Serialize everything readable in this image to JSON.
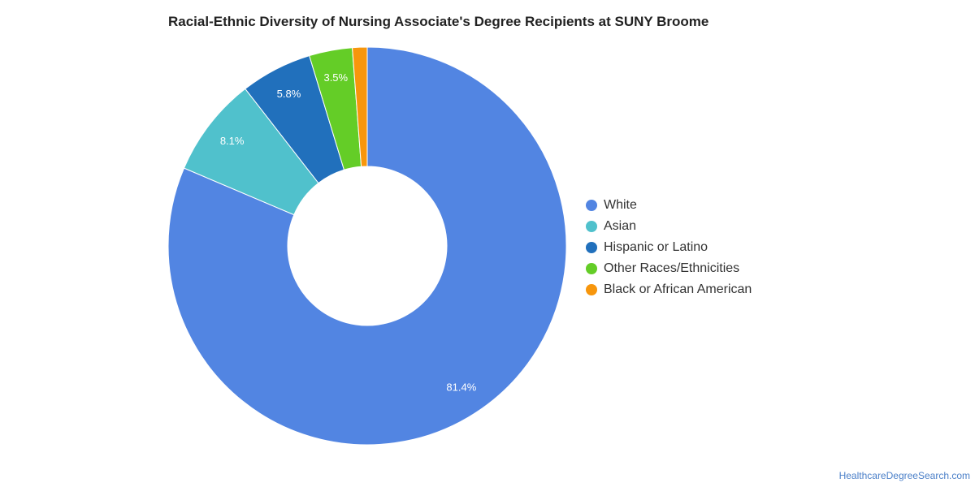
{
  "chart_data": {
    "type": "pie",
    "variant": "donut",
    "title": "Racial-Ethnic Diversity of Nursing Associate's Degree Recipients at SUNY Broome",
    "unit": "%",
    "legend_position": "right",
    "series": [
      {
        "name": "White",
        "value": 81.4,
        "label": "81.4%",
        "color": "#5285e2"
      },
      {
        "name": "Asian",
        "value": 8.1,
        "label": "8.1%",
        "color": "#50c1cc"
      },
      {
        "name": "Hispanic or Latino",
        "value": 5.8,
        "label": "5.8%",
        "color": "#2170bc"
      },
      {
        "name": "Other Races/Ethnicities",
        "value": 3.5,
        "label": "3.5%",
        "color": "#64cd27"
      },
      {
        "name": "Black or African American",
        "value": 1.2,
        "label": "",
        "color": "#f7960c"
      }
    ]
  },
  "footer": {
    "source": "HealthcareDegreeSearch.com"
  }
}
